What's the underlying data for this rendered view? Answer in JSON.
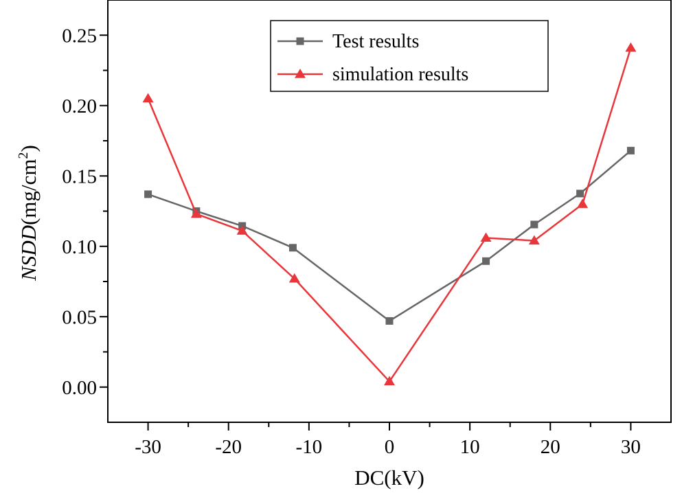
{
  "chart_data": {
    "type": "line",
    "title": "",
    "xlabel": "DC(kV)",
    "ylabel": {
      "italic": "NSDD",
      "unit_open": "(mg/cm",
      "unit_sup": "2",
      "unit_close": ")"
    },
    "xlim": [
      -35,
      35
    ],
    "ylim": [
      -0.025,
      0.275
    ],
    "x_ticks": [
      -30,
      -20,
      -10,
      0,
      10,
      20,
      30
    ],
    "x_tick_labels": [
      "-30",
      "-20",
      "-10",
      "0",
      "10",
      "20",
      "30"
    ],
    "y_ticks": [
      0.0,
      0.05,
      0.1,
      0.15,
      0.2,
      0.25
    ],
    "y_tick_labels": [
      "0.00",
      "0.05",
      "0.10",
      "0.15",
      "0.20",
      "0.25"
    ],
    "grid": false,
    "legend_position": "top-center",
    "series": [
      {
        "name": "Test results",
        "color": "#666666",
        "marker": "square",
        "x": [
          -30,
          -24,
          -18.3,
          -12,
          0,
          12,
          18,
          23.7,
          30
        ],
        "y": [
          0.137,
          0.125,
          0.1145,
          0.099,
          0.047,
          0.0895,
          0.1155,
          0.1375,
          0.168
        ]
      },
      {
        "name": "simulation results",
        "color": "#e8363a",
        "marker": "triangle",
        "x": [
          -30,
          -24,
          -18.3,
          -11.8,
          0,
          12,
          18,
          24,
          30
        ],
        "y": [
          0.205,
          0.123,
          0.111,
          0.077,
          0.004,
          0.106,
          0.104,
          0.13,
          0.241
        ]
      }
    ]
  }
}
